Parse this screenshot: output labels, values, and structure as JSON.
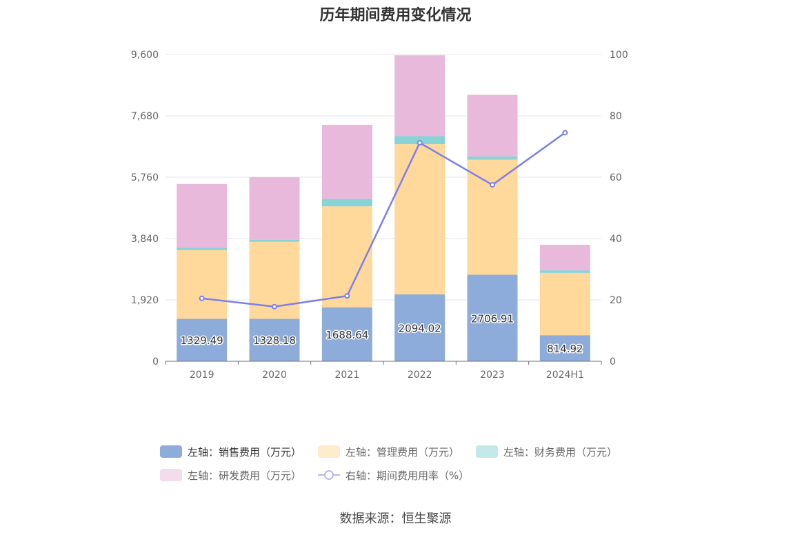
{
  "chart_data": {
    "type": "bar",
    "title": "历年期间费用变化情况",
    "categories": [
      "2019",
      "2020",
      "2021",
      "2022",
      "2023",
      "2024H1"
    ],
    "stacked": true,
    "left_axis": {
      "ylim": [
        0,
        9600
      ],
      "ticks": [
        "0",
        "1,920",
        "3,840",
        "5,760",
        "7,680",
        "9,600"
      ],
      "tick_values": [
        0,
        1920,
        3840,
        5760,
        7680,
        9600
      ]
    },
    "right_axis": {
      "ylim": [
        0,
        100
      ],
      "ticks": [
        "0",
        "20",
        "40",
        "60",
        "80",
        "100"
      ],
      "tick_values": [
        0,
        20,
        40,
        60,
        80,
        100
      ]
    },
    "grid": true,
    "legend_position": "bottom",
    "series": [
      {
        "name": "左轴：销售费用（万元）",
        "type": "bar",
        "axis": "left",
        "color": "#8eacd9",
        "values": [
          1329.49,
          1328.18,
          1688.64,
          2094.02,
          2706.91,
          814.92
        ],
        "labels": [
          "1329.49",
          "1328.18",
          "1688.64",
          "2094.02",
          "2706.91",
          "814.92"
        ]
      },
      {
        "name": "左轴：管理费用（万元）",
        "type": "bar",
        "axis": "left",
        "color": "#ffd99b",
        "values": [
          2150,
          2410,
          3160,
          4700,
          3600,
          1950
        ]
      },
      {
        "name": "左轴：财务费用（万元）",
        "type": "bar",
        "axis": "left",
        "color": "#87d3d6",
        "values": [
          70,
          60,
          230,
          250,
          100,
          80
        ]
      },
      {
        "name": "左轴：研发费用（万元）",
        "type": "bar",
        "axis": "left",
        "color": "#e8b9da",
        "values": [
          2000,
          1960,
          2320,
          2530,
          1930,
          800
        ]
      },
      {
        "name": "右轴：期间费用用率（%）",
        "type": "line",
        "axis": "right",
        "color": "#7b7fe8",
        "values": [
          20.5,
          17.8,
          21.3,
          71.2,
          57.5,
          74.5
        ]
      }
    ]
  },
  "legend": {
    "items": [
      {
        "label": "左轴：销售费用（万元）",
        "color": "#8eacd9",
        "kind": "box",
        "active": true
      },
      {
        "label": "左轴：管理费用（万元）",
        "color": "#ffeccc",
        "kind": "box",
        "active": false
      },
      {
        "label": "左轴：财务费用（万元）",
        "color": "#c3e9ea",
        "kind": "box",
        "active": false
      },
      {
        "label": "左轴：研发费用（万元）",
        "color": "#f3dcec",
        "kind": "box",
        "active": false
      },
      {
        "label": "右轴：期间费用用率（%）",
        "color": "#b6b8f2",
        "kind": "line",
        "active": false
      }
    ]
  },
  "source": "数据来源：恒生聚源"
}
